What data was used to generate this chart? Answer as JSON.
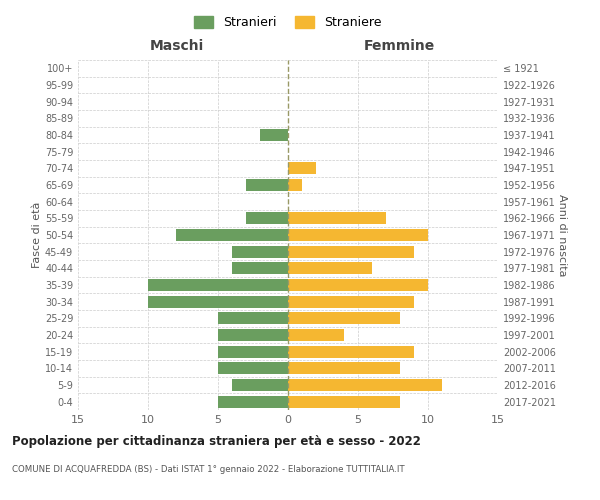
{
  "age_groups": [
    "0-4",
    "5-9",
    "10-14",
    "15-19",
    "20-24",
    "25-29",
    "30-34",
    "35-39",
    "40-44",
    "45-49",
    "50-54",
    "55-59",
    "60-64",
    "65-69",
    "70-74",
    "75-79",
    "80-84",
    "85-89",
    "90-94",
    "95-99",
    "100+"
  ],
  "birth_years": [
    "2017-2021",
    "2012-2016",
    "2007-2011",
    "2002-2006",
    "1997-2001",
    "1992-1996",
    "1987-1991",
    "1982-1986",
    "1977-1981",
    "1972-1976",
    "1967-1971",
    "1962-1966",
    "1957-1961",
    "1952-1956",
    "1947-1951",
    "1942-1946",
    "1937-1941",
    "1932-1936",
    "1927-1931",
    "1922-1926",
    "≤ 1921"
  ],
  "maschi": [
    5,
    4,
    5,
    5,
    5,
    5,
    10,
    10,
    4,
    4,
    8,
    3,
    0,
    3,
    0,
    0,
    2,
    0,
    0,
    0,
    0
  ],
  "femmine": [
    8,
    11,
    8,
    9,
    4,
    8,
    9,
    10,
    6,
    9,
    10,
    7,
    0,
    1,
    2,
    0,
    0,
    0,
    0,
    0,
    0
  ],
  "maschi_color": "#6a9e5f",
  "femmine_color": "#f5b731",
  "background_color": "#ffffff",
  "grid_color": "#cccccc",
  "title": "Popolazione per cittadinanza straniera per età e sesso - 2022",
  "subtitle": "COMUNE DI ACQUAFREDDA (BS) - Dati ISTAT 1° gennaio 2022 - Elaborazione TUTTITALIA.IT",
  "xlabel_left": "Maschi",
  "xlabel_right": "Femmine",
  "ylabel_left": "Fasce di età",
  "ylabel_right": "Anni di nascita",
  "legend_maschi": "Stranieri",
  "legend_femmine": "Straniere",
  "xlim": 15,
  "bar_height": 0.72
}
